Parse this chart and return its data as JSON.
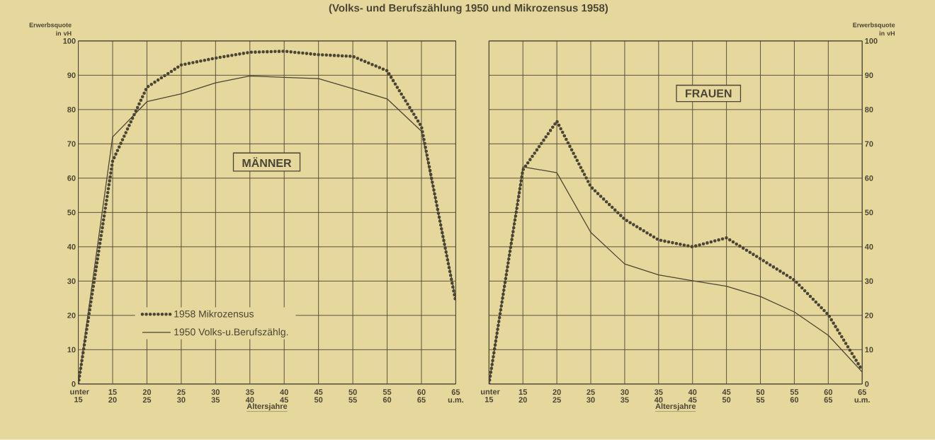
{
  "chart_data": [
    {
      "type": "line",
      "subtitle": "(Volks- und Berufszählung 1950 und Mikrozensus 1958)",
      "title": "MÄNNER",
      "xlabel": "Altersjahre",
      "ylabel": "Erwerbsquote in vH",
      "categories": [
        "unter 15",
        "15 20",
        "20 25",
        "25 30",
        "30 35",
        "35 40",
        "40 45",
        "45 50",
        "50 55",
        "55 60",
        "60 65",
        "65 u.m."
      ],
      "series": [
        {
          "name": "1958 Mikrozensus",
          "color": "#4a4535",
          "line_style": "dotted",
          "values": [
            0,
            65,
            86.5,
            93,
            95,
            96.7,
            97,
            96,
            95.5,
            91.3,
            75,
            24
          ]
        },
        {
          "name": "1950 Volks-u.Berufszählg.",
          "color": "#4a4535",
          "line_style": "solid",
          "values": [
            0,
            72,
            82.3,
            84.6,
            87.8,
            89.8,
            89.4,
            89,
            86.1,
            83.1,
            73.7,
            25
          ]
        }
      ],
      "ylim": [
        0,
        100
      ],
      "yticks": [
        0,
        10,
        20,
        30,
        40,
        50,
        60,
        70,
        80,
        90,
        100
      ],
      "grid": true,
      "legend": "bottom left"
    },
    {
      "type": "line",
      "title": "FRAUEN",
      "xlabel": "Altersjahre",
      "ylabel": "Erwerbsquote in vH",
      "categories": [
        "unter 15",
        "15 20",
        "20 25",
        "25 30",
        "30 35",
        "35 40",
        "40 45",
        "45 50",
        "50 55",
        "55 60",
        "60 65",
        "65 u.m."
      ],
      "series": [
        {
          "color": "#4a4535",
          "line_style": "dotted",
          "values": [
            0,
            62.4,
            76.6,
            57.5,
            48,
            42,
            40,
            42.6,
            36.5,
            30.3,
            20.2,
            4
          ]
        },
        {
          "color": "#4a4535",
          "line_style": "solid",
          "values": [
            0,
            63.3,
            61.6,
            44.2,
            35,
            31.8,
            30.1,
            28.5,
            25.5,
            21,
            14.2,
            3.5
          ]
        }
      ],
      "ylim": [
        0,
        100
      ],
      "yticks": [
        0,
        10,
        20,
        30,
        40,
        50,
        60,
        70,
        80,
        90,
        100
      ],
      "grid": true
    }
  ]
}
